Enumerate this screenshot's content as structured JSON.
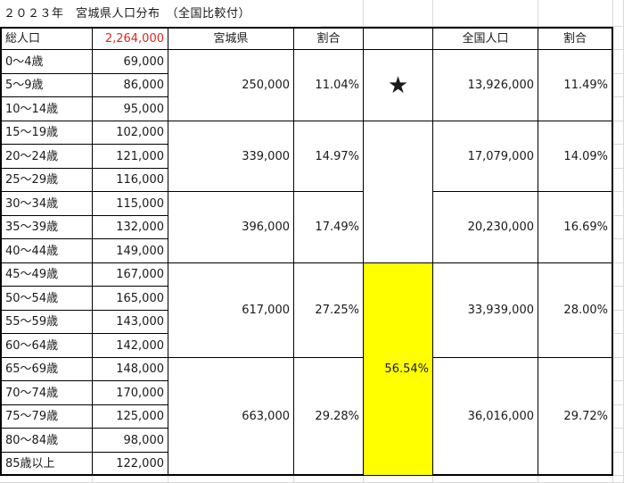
{
  "title": "２０２３年　宮城県人口分布　（全国比較付）",
  "header": {
    "total_label": "総人口",
    "total_value": "2,264,000",
    "col_pref": "宮城県",
    "col_ratio": "割合",
    "col_nation": "全国人口",
    "col_nation_ratio": "割合"
  },
  "age_rows": [
    {
      "age": "0〜4歳",
      "value": "69,000"
    },
    {
      "age": "5〜9歳",
      "value": "86,000"
    },
    {
      "age": "10〜14歳",
      "value": "95,000"
    },
    {
      "age": "15〜19歳",
      "value": "102,000"
    },
    {
      "age": "20〜24歳",
      "value": "121,000"
    },
    {
      "age": "25〜29歳",
      "value": "116,000"
    },
    {
      "age": "30〜34歳",
      "value": "115,000"
    },
    {
      "age": "35〜39歳",
      "value": "132,000"
    },
    {
      "age": "40〜44歳",
      "value": "149,000"
    },
    {
      "age": "45〜49歳",
      "value": "167,000"
    },
    {
      "age": "50〜54歳",
      "value": "165,000"
    },
    {
      "age": "55〜59歳",
      "value": "143,000"
    },
    {
      "age": "60〜64歳",
      "value": "142,000"
    },
    {
      "age": "65〜69歳",
      "value": "148,000"
    },
    {
      "age": "70〜74歳",
      "value": "170,000"
    },
    {
      "age": "75〜79歳",
      "value": "125,000"
    },
    {
      "age": "80〜84歳",
      "value": "98,000"
    },
    {
      "age": "85歳以上",
      "value": "122,000"
    }
  ],
  "groups": [
    {
      "pref": "250,000",
      "ratio": "11.04%",
      "nation": "13,926,000",
      "nation_ratio": "11.49%"
    },
    {
      "pref": "339,000",
      "ratio": "14.97%",
      "nation": "17,079,000",
      "nation_ratio": "14.09%"
    },
    {
      "pref": "396,000",
      "ratio": "17.49%",
      "nation": "20,230,000",
      "nation_ratio": "16.69%"
    },
    {
      "pref": "617,000",
      "ratio": "27.25%",
      "nation": "33,939,000",
      "nation_ratio": "28.00%"
    },
    {
      "pref": "663,000",
      "ratio": "29.28%",
      "nation": "36,016,000",
      "nation_ratio": "29.72%"
    }
  ],
  "marker": {
    "symbol": "★",
    "highlight_value": "56.54%"
  },
  "colors": {
    "total_value": "#e0261d",
    "highlight_fill": "#ffff00",
    "grid": "#d9d9d9"
  }
}
